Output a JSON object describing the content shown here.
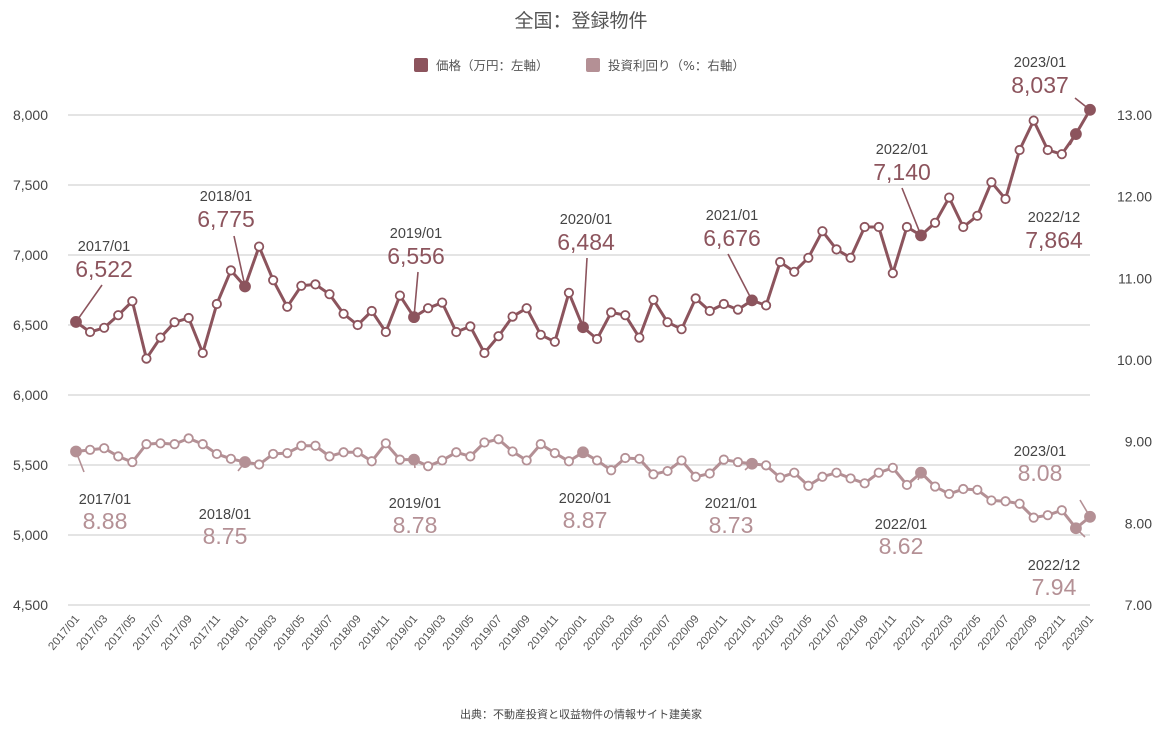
{
  "chart_data": {
    "type": "line",
    "title": "全国：登録物件",
    "source": "出典：不動産投資と収益物件の情報サイト建美家",
    "legend_position": "top-center",
    "grid": "horizontal",
    "colors": {
      "price": "#8c545d",
      "yield": "#b49095",
      "grid": "#c8c8c8"
    },
    "categories": [
      "2017/01",
      "2017/02",
      "2017/03",
      "2017/04",
      "2017/05",
      "2017/06",
      "2017/07",
      "2017/08",
      "2017/09",
      "2017/10",
      "2017/11",
      "2017/12",
      "2018/01",
      "2018/02",
      "2018/03",
      "2018/04",
      "2018/05",
      "2018/06",
      "2018/07",
      "2018/08",
      "2018/09",
      "2018/10",
      "2018/11",
      "2018/12",
      "2019/01",
      "2019/02",
      "2019/03",
      "2019/04",
      "2019/05",
      "2019/06",
      "2019/07",
      "2019/08",
      "2019/09",
      "2019/10",
      "2019/11",
      "2019/12",
      "2020/01",
      "2020/02",
      "2020/03",
      "2020/04",
      "2020/05",
      "2020/06",
      "2020/07",
      "2020/08",
      "2020/09",
      "2020/10",
      "2020/11",
      "2020/12",
      "2021/01",
      "2021/02",
      "2021/03",
      "2021/04",
      "2021/05",
      "2021/06",
      "2021/07",
      "2021/08",
      "2021/09",
      "2021/10",
      "2021/11",
      "2021/12",
      "2022/01",
      "2022/02",
      "2022/03",
      "2022/04",
      "2022/05",
      "2022/06",
      "2022/07",
      "2022/08",
      "2022/09",
      "2022/10",
      "2022/11",
      "2022/12",
      "2023/01"
    ],
    "x_tick_labels": [
      "2017/01",
      "2017/03",
      "2017/05",
      "2017/07",
      "2017/09",
      "2017/11",
      "2018/01",
      "2018/03",
      "2018/05",
      "2018/07",
      "2018/09",
      "2018/11",
      "2019/01",
      "2019/03",
      "2019/05",
      "2019/07",
      "2019/09",
      "2019/11",
      "2020/01",
      "2020/03",
      "2020/05",
      "2020/07",
      "2020/09",
      "2020/11",
      "2021/01",
      "2021/03",
      "2021/05",
      "2021/07",
      "2021/09",
      "2021/11",
      "2022/01",
      "2022/03",
      "2022/05",
      "2022/07",
      "2022/09",
      "2022/11",
      "2023/01"
    ],
    "y_left": {
      "label": "価格（万円：左軸）",
      "ticks": [
        "4,500",
        "5,000",
        "5,500",
        "6,000",
        "6,500",
        "7,000",
        "7,500",
        "8,000"
      ],
      "range": [
        4500,
        8000
      ]
    },
    "y_right": {
      "label": "投資利回り（%：右軸）",
      "ticks": [
        "7.00",
        "8.00",
        "9.00",
        "10.00",
        "11.00",
        "12.00",
        "13.00"
      ],
      "range": [
        7.0,
        13.0
      ]
    },
    "series": [
      {
        "name": "価格（万円：左軸）",
        "axis": "left",
        "values": [
          6522,
          6450,
          6480,
          6570,
          6670,
          6260,
          6410,
          6520,
          6550,
          6300,
          6650,
          6890,
          6775,
          7060,
          6820,
          6630,
          6780,
          6790,
          6720,
          6580,
          6500,
          6600,
          6450,
          6710,
          6556,
          6620,
          6660,
          6450,
          6490,
          6300,
          6420,
          6560,
          6620,
          6430,
          6380,
          6730,
          6484,
          6400,
          6590,
          6570,
          6410,
          6680,
          6520,
          6470,
          6690,
          6600,
          6650,
          6610,
          6676,
          6640,
          6950,
          6880,
          6980,
          7170,
          7040,
          6980,
          7200,
          7200,
          6870,
          7200,
          7140,
          7230,
          7410,
          7200,
          7280,
          7520,
          7400,
          7750,
          7960,
          7750,
          7720,
          7864,
          8037
        ]
      },
      {
        "name": "投資利回り（%：右軸）",
        "axis": "right",
        "values": [
          8.88,
          8.9,
          8.92,
          8.82,
          8.75,
          8.97,
          8.98,
          8.97,
          9.04,
          8.97,
          8.85,
          8.79,
          8.75,
          8.72,
          8.85,
          8.86,
          8.95,
          8.95,
          8.82,
          8.87,
          8.87,
          8.76,
          8.98,
          8.78,
          8.78,
          8.7,
          8.77,
          8.87,
          8.82,
          8.99,
          9.03,
          8.88,
          8.77,
          8.97,
          8.86,
          8.76,
          8.87,
          8.77,
          8.65,
          8.8,
          8.79,
          8.6,
          8.64,
          8.77,
          8.57,
          8.61,
          8.78,
          8.75,
          8.73,
          8.71,
          8.56,
          8.62,
          8.46,
          8.57,
          8.62,
          8.55,
          8.49,
          8.62,
          8.68,
          8.47,
          8.62,
          8.45,
          8.36,
          8.42,
          8.41,
          8.28,
          8.27,
          8.24,
          8.07,
          8.1,
          8.16,
          7.94,
          8.08
        ]
      }
    ],
    "annotations": [
      {
        "series": 0,
        "index": 0,
        "date": "2017/01",
        "value": "6,522"
      },
      {
        "series": 0,
        "index": 12,
        "date": "2018/01",
        "value": "6,775"
      },
      {
        "series": 0,
        "index": 24,
        "date": "2019/01",
        "value": "6,556"
      },
      {
        "series": 0,
        "index": 36,
        "date": "2020/01",
        "value": "6,484"
      },
      {
        "series": 0,
        "index": 48,
        "date": "2021/01",
        "value": "6,676"
      },
      {
        "series": 0,
        "index": 60,
        "date": "2022/01",
        "value": "7,140"
      },
      {
        "series": 0,
        "index": 71,
        "date": "2022/12",
        "value": "7,864"
      },
      {
        "series": 0,
        "index": 72,
        "date": "2023/01",
        "value": "8,037"
      },
      {
        "series": 1,
        "index": 0,
        "date": "2017/01",
        "value": "8.88"
      },
      {
        "series": 1,
        "index": 12,
        "date": "2018/01",
        "value": "8.75"
      },
      {
        "series": 1,
        "index": 24,
        "date": "2019/01",
        "value": "8.78"
      },
      {
        "series": 1,
        "index": 36,
        "date": "2020/01",
        "value": "8.87"
      },
      {
        "series": 1,
        "index": 48,
        "date": "2021/01",
        "value": "8.73"
      },
      {
        "series": 1,
        "index": 60,
        "date": "2022/01",
        "value": "8.62"
      },
      {
        "series": 1,
        "index": 71,
        "date": "2022/12",
        "value": "7.94"
      },
      {
        "series": 1,
        "index": 72,
        "date": "2023/01",
        "value": "8.08"
      }
    ]
  }
}
